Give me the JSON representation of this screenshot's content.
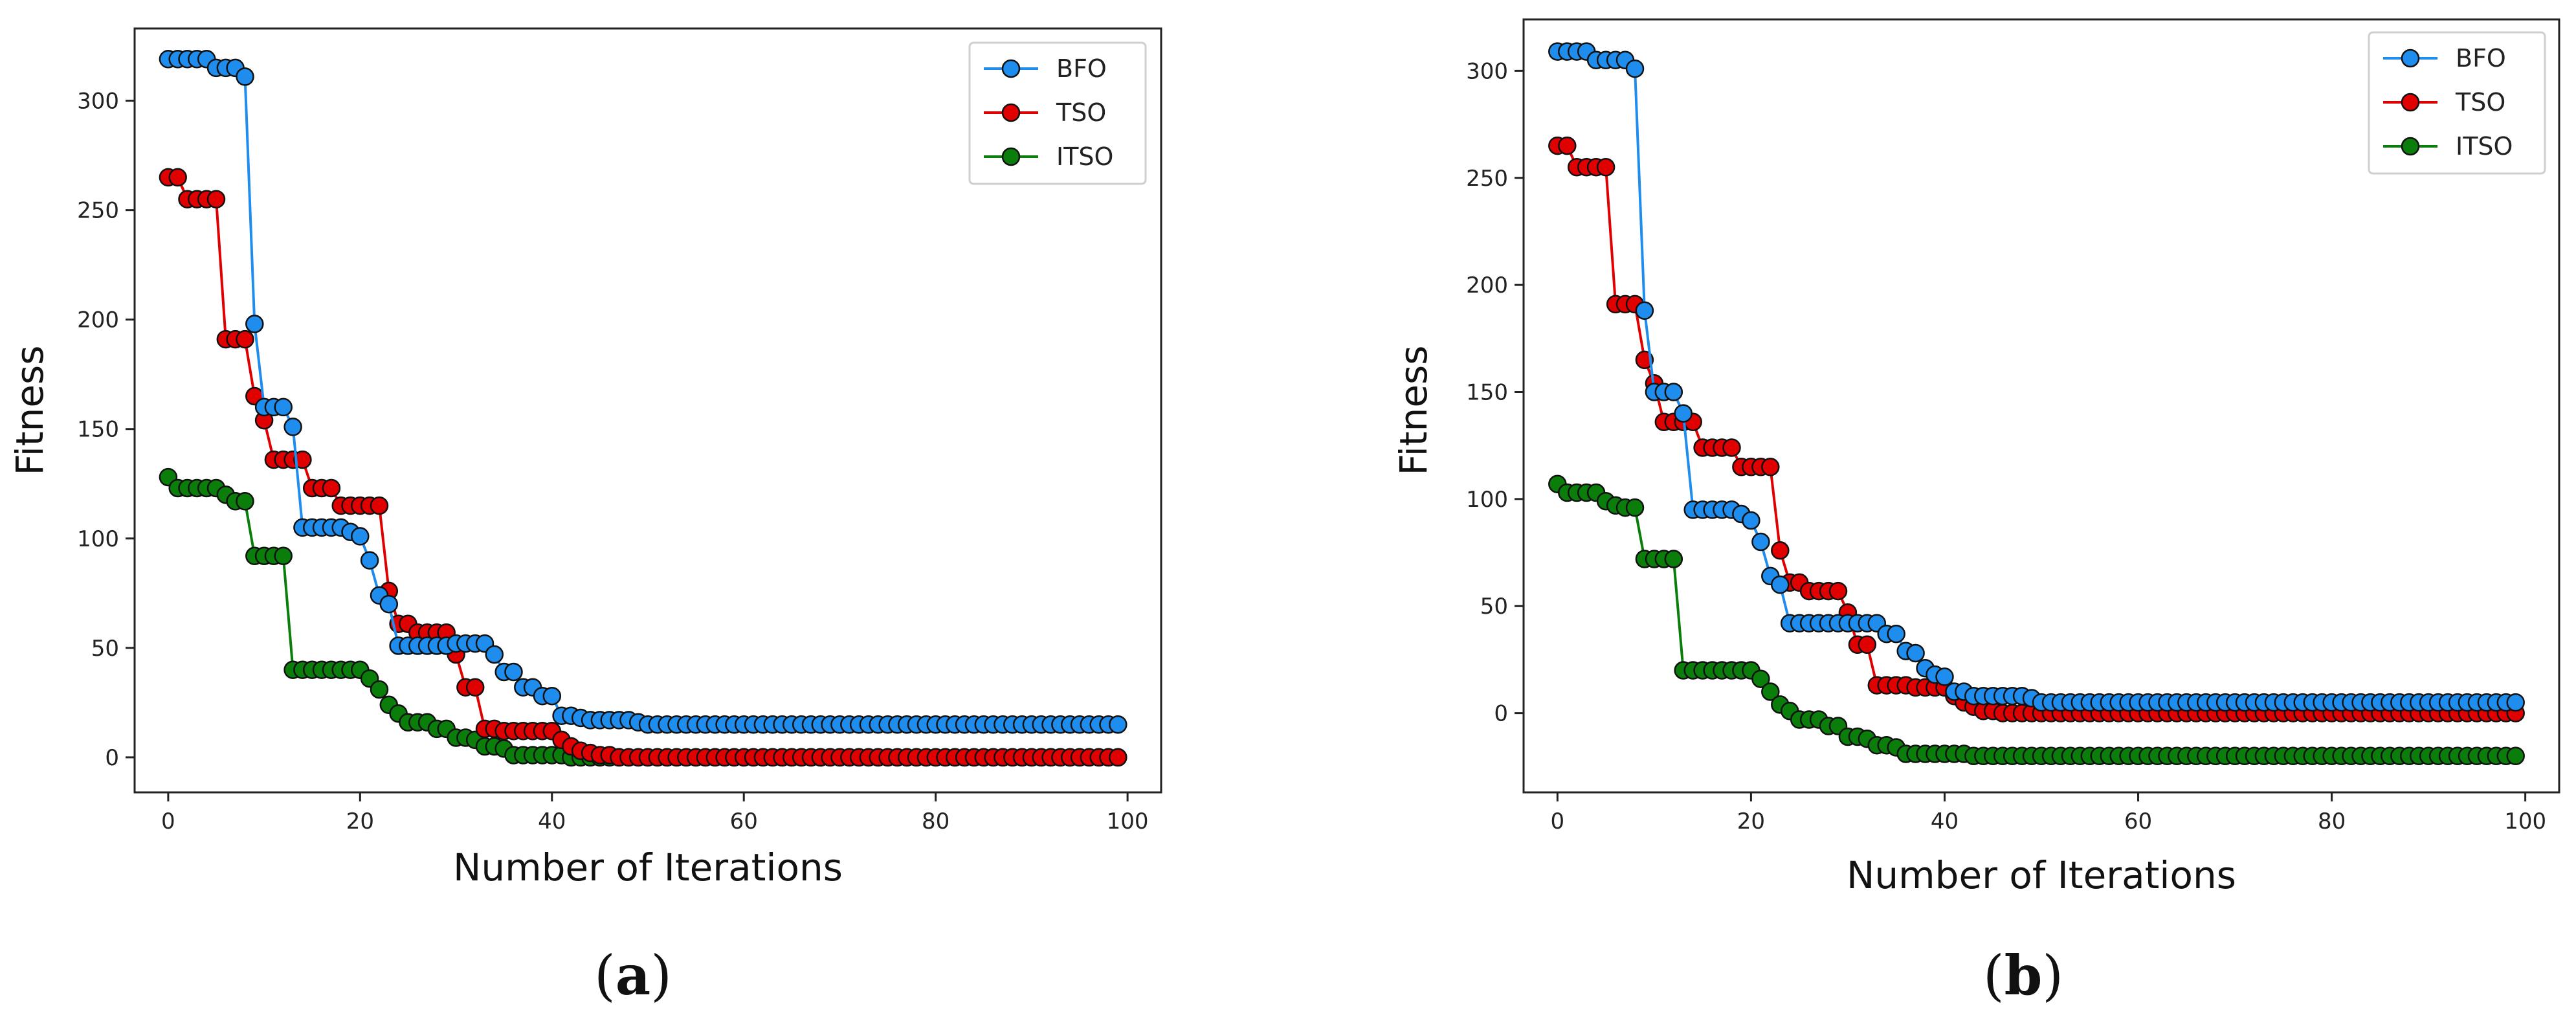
{
  "chart_data": [
    {
      "type": "line",
      "caption": "a",
      "xlabel": "Number of Iterations",
      "ylabel": "Fitness",
      "xlim": [
        -3.5,
        103.5
      ],
      "ylim": [
        -16,
        333
      ],
      "xticks": [
        0,
        20,
        40,
        60,
        80,
        100
      ],
      "yticks": [
        0,
        50,
        100,
        150,
        200,
        250,
        300
      ],
      "legend": "top-right",
      "colors": {
        "BFO": "#1f8ded",
        "TSO": "#e00000",
        "ITSO": "#0a7d0a"
      },
      "series": [
        {
          "name": "BFO",
          "segments": [
            [
              0,
              319
            ],
            [
              5,
              315
            ],
            [
              8,
              311
            ],
            [
              9,
              198
            ],
            [
              10,
              160
            ],
            [
              13,
              151
            ],
            [
              14,
              105
            ],
            [
              19,
              103
            ],
            [
              20,
              101
            ],
            [
              21,
              90
            ],
            [
              22,
              74
            ],
            [
              23,
              70
            ],
            [
              24,
              51
            ],
            [
              29,
              51
            ],
            [
              30,
              52
            ],
            [
              34,
              47
            ],
            [
              35,
              39
            ],
            [
              37,
              32
            ],
            [
              39,
              28
            ],
            [
              41,
              19
            ],
            [
              43,
              18
            ],
            [
              44,
              17
            ],
            [
              49,
              16
            ],
            [
              50,
              15
            ],
            [
              99,
              15
            ]
          ]
        },
        {
          "name": "TSO",
          "segments": [
            [
              0,
              265
            ],
            [
              2,
              255
            ],
            [
              6,
              191
            ],
            [
              9,
              165
            ],
            [
              10,
              154
            ],
            [
              11,
              136
            ],
            [
              15,
              123
            ],
            [
              18,
              115
            ],
            [
              23,
              76
            ],
            [
              24,
              61
            ],
            [
              26,
              57
            ],
            [
              30,
              47
            ],
            [
              31,
              32
            ],
            [
              33,
              13
            ],
            [
              35,
              12
            ],
            [
              40,
              12
            ],
            [
              41,
              8
            ],
            [
              42,
              5
            ],
            [
              43,
              3
            ],
            [
              44,
              2
            ],
            [
              45,
              1
            ],
            [
              47,
              0
            ],
            [
              99,
              0
            ]
          ]
        },
        {
          "name": "ITSO",
          "segments": [
            [
              0,
              128
            ],
            [
              1,
              123
            ],
            [
              6,
              120
            ],
            [
              7,
              117
            ],
            [
              9,
              92
            ],
            [
              13,
              40
            ],
            [
              20,
              40
            ],
            [
              21,
              36
            ],
            [
              22,
              31
            ],
            [
              23,
              24
            ],
            [
              24,
              20
            ],
            [
              25,
              16
            ],
            [
              28,
              13
            ],
            [
              30,
              9
            ],
            [
              32,
              8
            ],
            [
              33,
              5
            ],
            [
              35,
              4
            ],
            [
              36,
              1
            ],
            [
              41,
              1
            ],
            [
              42,
              0
            ],
            [
              99,
              0
            ]
          ]
        }
      ]
    },
    {
      "type": "line",
      "caption": "b",
      "xlabel": "Number of Iterations",
      "ylabel": "Fitness",
      "xlim": [
        -3.5,
        103.5
      ],
      "ylim": [
        -37,
        324
      ],
      "xticks": [
        0,
        20,
        40,
        60,
        80,
        100
      ],
      "yticks": [
        0,
        50,
        100,
        150,
        200,
        250,
        300
      ],
      "legend": "top-right",
      "colors": {
        "BFO": "#1f8ded",
        "TSO": "#e00000",
        "ITSO": "#0a7d0a"
      },
      "series": [
        {
          "name": "BFO",
          "segments": [
            [
              0,
              309
            ],
            [
              4,
              305
            ],
            [
              8,
              301
            ],
            [
              9,
              188
            ],
            [
              10,
              150
            ],
            [
              12,
              150
            ],
            [
              13,
              140
            ],
            [
              14,
              95
            ],
            [
              19,
              93
            ],
            [
              20,
              90
            ],
            [
              21,
              80
            ],
            [
              22,
              64
            ],
            [
              23,
              60
            ],
            [
              24,
              42
            ],
            [
              31,
              42
            ],
            [
              34,
              37
            ],
            [
              36,
              29
            ],
            [
              37,
              28
            ],
            [
              38,
              21
            ],
            [
              39,
              18
            ],
            [
              40,
              17
            ],
            [
              41,
              10
            ],
            [
              43,
              8
            ],
            [
              44,
              8
            ],
            [
              49,
              7
            ],
            [
              50,
              5
            ],
            [
              99,
              5
            ]
          ]
        },
        {
          "name": "TSO",
          "segments": [
            [
              0,
              265
            ],
            [
              2,
              255
            ],
            [
              6,
              191
            ],
            [
              9,
              165
            ],
            [
              10,
              154
            ],
            [
              11,
              136
            ],
            [
              15,
              124
            ],
            [
              19,
              115
            ],
            [
              23,
              76
            ],
            [
              24,
              61
            ],
            [
              26,
              57
            ],
            [
              30,
              47
            ],
            [
              31,
              32
            ],
            [
              33,
              13
            ],
            [
              37,
              12
            ],
            [
              41,
              8
            ],
            [
              42,
              5
            ],
            [
              43,
              3
            ],
            [
              44,
              1
            ],
            [
              46,
              0
            ],
            [
              99,
              0
            ]
          ]
        },
        {
          "name": "ITSO",
          "segments": [
            [
              0,
              107
            ],
            [
              1,
              103
            ],
            [
              5,
              99
            ],
            [
              6,
              97
            ],
            [
              7,
              96
            ],
            [
              9,
              72
            ],
            [
              13,
              20
            ],
            [
              20,
              20
            ],
            [
              21,
              16
            ],
            [
              22,
              10
            ],
            [
              23,
              4
            ],
            [
              24,
              1
            ],
            [
              25,
              -3
            ],
            [
              28,
              -6
            ],
            [
              30,
              -11
            ],
            [
              32,
              -12
            ],
            [
              33,
              -15
            ],
            [
              35,
              -16
            ],
            [
              36,
              -19
            ],
            [
              42,
              -19
            ],
            [
              43,
              -20
            ],
            [
              99,
              -20
            ]
          ]
        }
      ]
    }
  ]
}
